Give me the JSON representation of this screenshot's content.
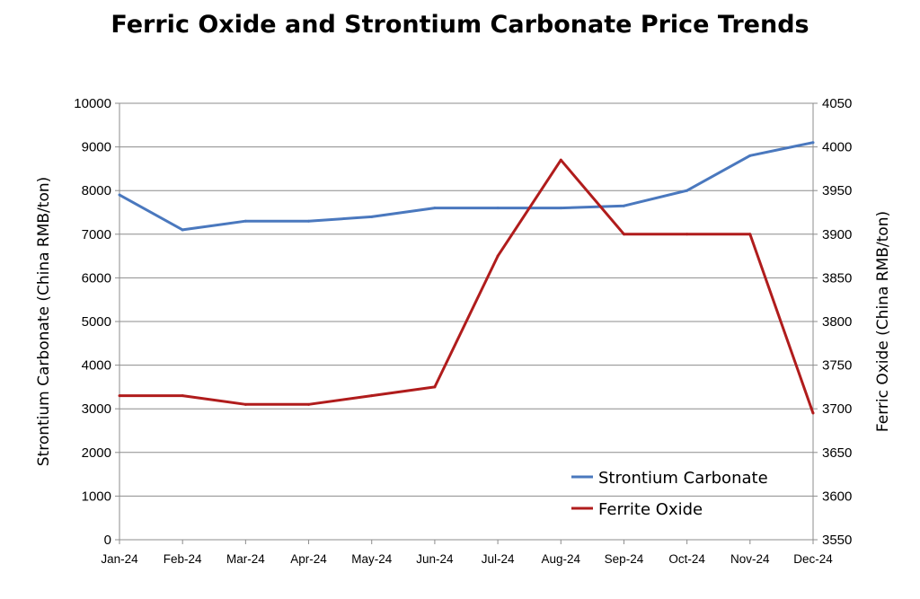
{
  "chart_data": {
    "type": "line",
    "title": "Ferric Oxide and Strontium Carbonate Price Trends",
    "categories": [
      "Jan-24",
      "Feb-24",
      "Mar-24",
      "Apr-24",
      "May-24",
      "Jun-24",
      "Jul-24",
      "Aug-24",
      "Sep-24",
      "Oct-24",
      "Nov-24",
      "Dec-24"
    ],
    "y_left": {
      "label": "Strontium Carbonate (China RMB/ton)",
      "ylim": [
        0,
        10000
      ],
      "ticks": [
        "0",
        "1000",
        "2000",
        "3000",
        "4000",
        "5000",
        "6000",
        "7000",
        "8000",
        "9000",
        "10000"
      ]
    },
    "y_right": {
      "label": "Ferric Oxide (China RMB/ton)",
      "ylim": [
        3550,
        4050
      ],
      "ticks": [
        "3550",
        "3600",
        "3650",
        "3700",
        "3750",
        "3800",
        "3850",
        "3900",
        "3950",
        "4000",
        "4050"
      ]
    },
    "grid": true,
    "legend_position": "bottom-right",
    "series": [
      {
        "name": "Strontium Carbonate",
        "axis": "left",
        "color": "#4a78be",
        "values": [
          7900,
          7100,
          7300,
          7300,
          7400,
          7600,
          7600,
          7600,
          7650,
          8000,
          8800,
          9100
        ]
      },
      {
        "name": "Ferrite Oxide",
        "axis": "right",
        "color": "#b01c1c",
        "values": [
          3715,
          3715,
          3705,
          3705,
          3715,
          3725,
          3875,
          3985,
          3900,
          3900,
          3900,
          3695
        ]
      }
    ]
  }
}
